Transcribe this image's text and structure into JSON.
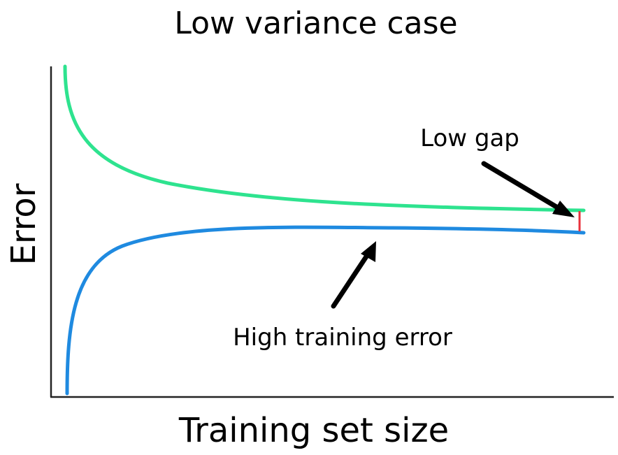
{
  "chart_data": {
    "type": "line",
    "title": "Low variance case",
    "xlabel": "Training set size",
    "ylabel": "Error",
    "grid": false,
    "legend": "none",
    "series": [
      {
        "color": "#2ee38f",
        "shape": "validation-decreasing"
      },
      {
        "color": "#1f8ae0",
        "shape": "training-increasing"
      }
    ],
    "annotations": [
      {
        "text": "Low gap",
        "arrow_to": "gap-end"
      },
      {
        "text": "High training error",
        "arrow_to": "training-curve"
      }
    ],
    "gap_marker_color": "#e8323c"
  }
}
